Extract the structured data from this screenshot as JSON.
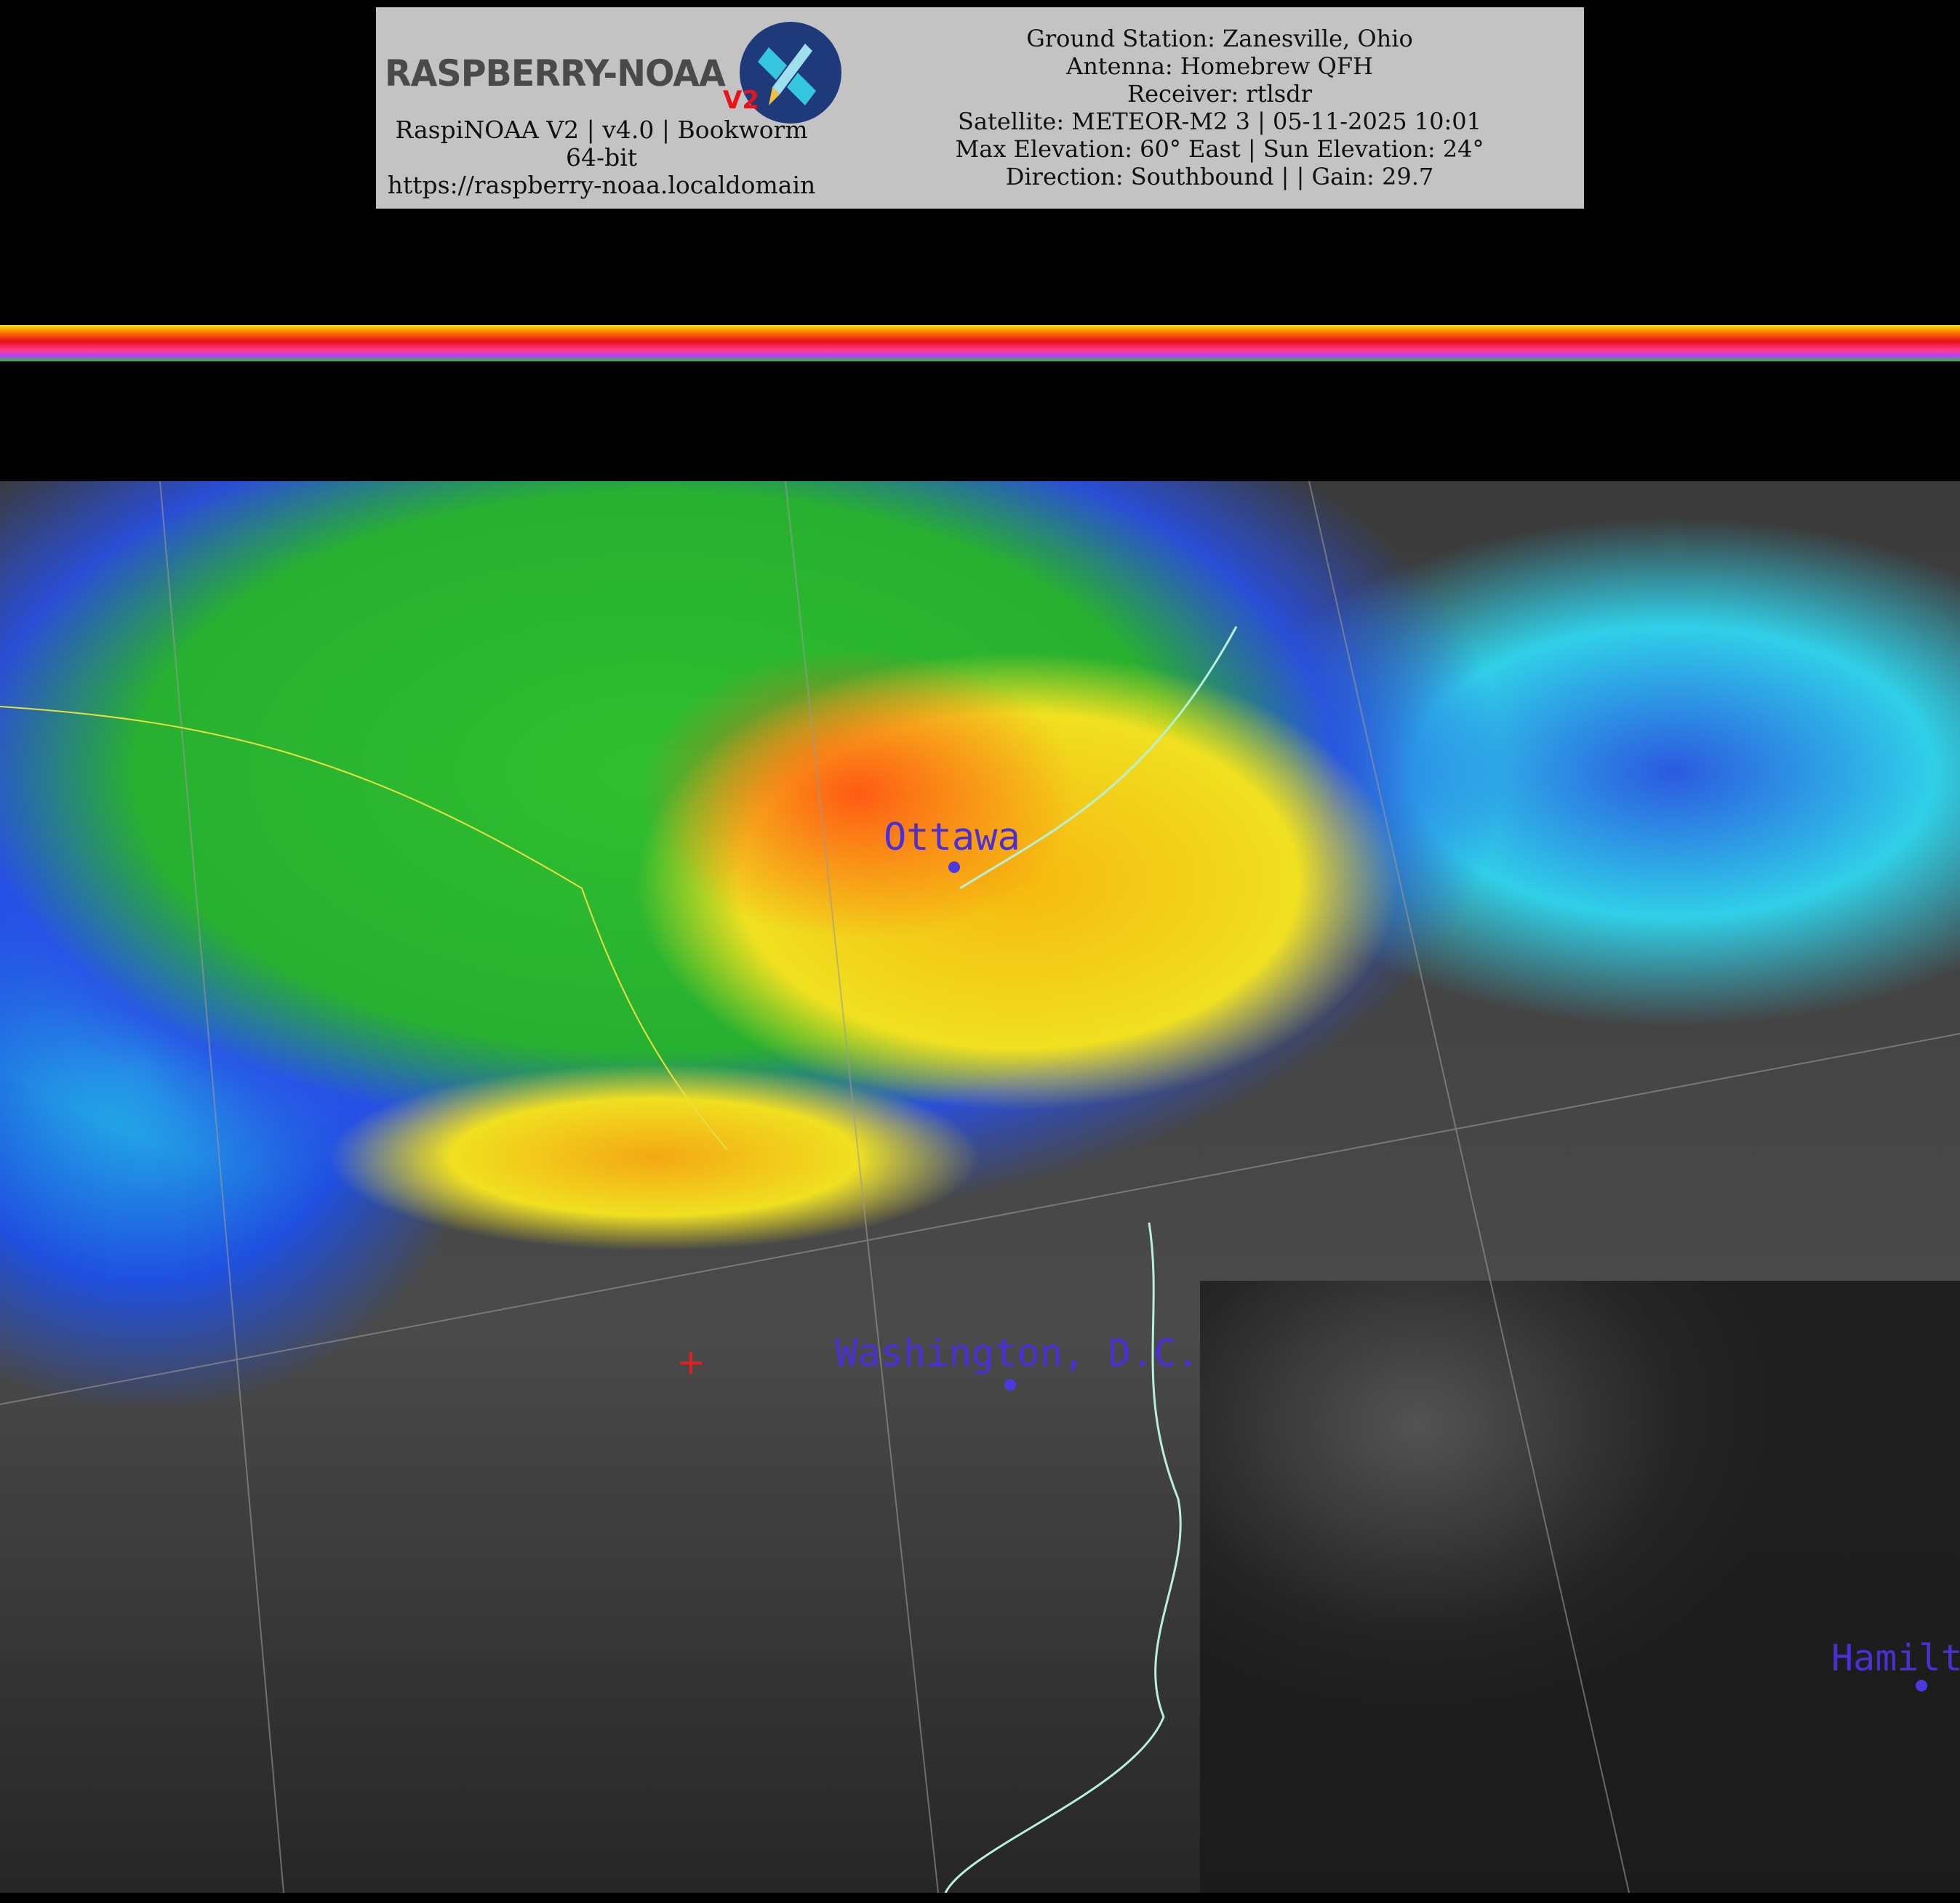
{
  "header": {
    "logo": {
      "text": "RASPBERRY-NOAA",
      "badge": "V2",
      "circle_color": "#1e3a7a",
      "badge_color": "#e8141c"
    },
    "left_lines": [
      "RaspiNOAA V2 | v4.0 | Bookworm 64-bit",
      "https://raspberry-noaa.localdomain"
    ],
    "right_lines": [
      "Ground Station: Zanesville, Ohio",
      "Antenna: Homebrew QFH",
      "Receiver: rtlsdr",
      "Satellite: METEOR-M2 3 | 05-11-2025 10:01",
      "Max Elevation: 60° East | Sun Elevation: 24°",
      "Direction: Southbound | | Gain: 29.7"
    ]
  },
  "map": {
    "labels": [
      {
        "text": "Ottawa"
      },
      {
        "text": "Washington, D.C."
      },
      {
        "text": "Hamilt"
      }
    ],
    "label_color": "#4a2fd8",
    "coastline_color": "#b8f0d8",
    "border_color": "#e8e040",
    "marker_color": "#e02020"
  }
}
